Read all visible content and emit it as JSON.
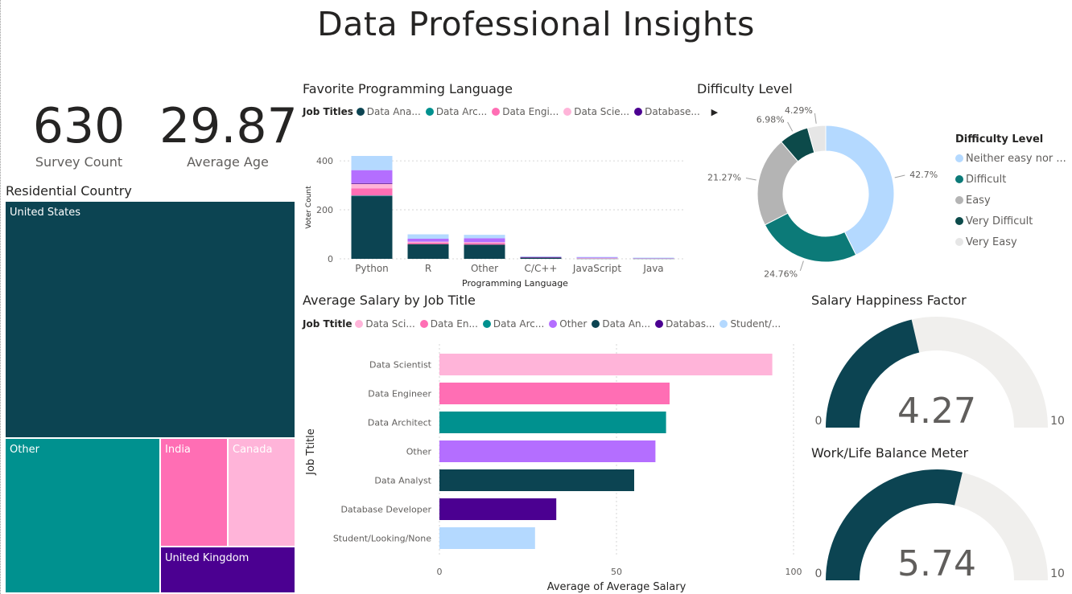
{
  "title": "Data Professional Insights",
  "kpis": {
    "survey_count": {
      "value": "630",
      "label": "Survey Count"
    },
    "average_age": {
      "value": "29.87",
      "label": "Average Age"
    }
  },
  "colors": {
    "dark_teal": "#0c4452",
    "teal": "#00918f",
    "pink": "#ff6eb4",
    "light_pink": "#ffb4d9",
    "purple": "#b46eff",
    "indigo": "#4b0091",
    "light_blue": "#b4d9ff",
    "grey": "#b4b4b4",
    "light_grey": "#e6e6e6",
    "gauge_bg": "#f0efed"
  },
  "treemap": {
    "title": "Residential Country",
    "items": [
      {
        "label": "United States",
        "color": "#0c4452"
      },
      {
        "label": "Other",
        "color": "#00918f"
      },
      {
        "label": "India",
        "color": "#ff6eb4"
      },
      {
        "label": "Canada",
        "color": "#ffb4d9"
      },
      {
        "label": "United Kingdom",
        "color": "#4b0091"
      }
    ]
  },
  "lang_chart": {
    "title": "Favorite Programming Language",
    "legend_title": "Job Titles",
    "legend_items": [
      "Data Ana...",
      "Data Arc...",
      "Data Engi...",
      "Data Scie...",
      "Database..."
    ],
    "legend_colors": [
      "#0c4452",
      "#00918f",
      "#ff6eb4",
      "#ffb4d9",
      "#4b0091"
    ],
    "legend_arrow": "▶"
  },
  "salary_chart": {
    "title": "Average Salary by Job Title",
    "legend_title": "Job Ttitle",
    "legend_items": [
      "Data Sci...",
      "Data En...",
      "Data Arc...",
      "Other",
      "Data An...",
      "Databas...",
      "Student/..."
    ],
    "legend_colors": [
      "#ffb4d9",
      "#ff6eb4",
      "#00918f",
      "#b46eff",
      "#0c4452",
      "#4b0091",
      "#b4d9ff"
    ]
  },
  "difficulty": {
    "title": "Difficulty Level",
    "legend_title": "Difficulty Level",
    "legend_items": [
      "Neither easy nor ...",
      "Difficult",
      "Easy",
      "Very Difficult",
      "Very Easy"
    ]
  },
  "gauges": {
    "salary": {
      "title": "Salary Happiness Factor",
      "value_label": "4.27",
      "min_label": "0",
      "max_label": "10"
    },
    "worklife": {
      "title": "Work/Life Balance Meter",
      "value_label": "5.74",
      "min_label": "0",
      "max_label": "10"
    }
  },
  "chart_data": [
    {
      "type": "bar",
      "stacked": true,
      "title": "Favorite Programming Language",
      "xlabel": "Programming Language",
      "ylabel": "Voter Count",
      "categories": [
        "Python",
        "R",
        "Other",
        "C/C++",
        "JavaScript",
        "Java"
      ],
      "ylim": [
        0,
        420
      ],
      "yticks": [
        0,
        200,
        400
      ],
      "series": [
        {
          "name": "Data Ana...",
          "color": "#0c4452",
          "values": [
            256,
            60,
            58,
            6,
            2,
            2
          ]
        },
        {
          "name": "Data Arc...",
          "color": "#00918f",
          "values": [
            2,
            0,
            0,
            0,
            0,
            0
          ]
        },
        {
          "name": "Data Engi...",
          "color": "#ff6eb4",
          "values": [
            30,
            6,
            6,
            1,
            0,
            0
          ]
        },
        {
          "name": "Data Scie...",
          "color": "#ffb4d9",
          "values": [
            18,
            4,
            4,
            0,
            1,
            1
          ]
        },
        {
          "name": "Database...",
          "color": "#4b0091",
          "values": [
            3,
            0,
            0,
            1,
            0,
            0
          ]
        },
        {
          "name": "",
          "color": "#b46eff",
          "values": [
            53,
            12,
            16,
            1,
            3,
            1
          ]
        },
        {
          "name": "",
          "color": "#b4d9ff",
          "values": [
            58,
            18,
            14,
            1,
            2,
            1
          ]
        }
      ]
    },
    {
      "type": "pie",
      "donut": true,
      "title": "Difficulty Level",
      "labels": [
        "Neither easy nor ...",
        "Difficult",
        "Easy",
        "Very Difficult",
        "Very Easy"
      ],
      "values": [
        42.7,
        24.76,
        21.27,
        6.98,
        4.29
      ],
      "value_labels": [
        "42.7%",
        "24.76%",
        "21.27%",
        "6.98%",
        "4.29%"
      ],
      "colors": [
        "#b4d9ff",
        "#0c7a78",
        "#b4b4b4",
        "#0c4a4a",
        "#e6e6e6"
      ],
      "legend": "right"
    },
    {
      "type": "bar",
      "orientation": "horizontal",
      "title": "Average Salary by Job Title",
      "xlabel": "Average of Average Salary",
      "ylabel": "Job Ttitle",
      "categories": [
        "Data Scientist",
        "Data Engineer",
        "Data Architect",
        "Other",
        "Data Analyst",
        "Database Developer",
        "Student/Looking/None"
      ],
      "values": [
        94,
        65,
        64,
        61,
        55,
        33,
        27
      ],
      "colors": [
        "#ffb4d9",
        "#ff6eb4",
        "#00918f",
        "#b46eff",
        "#0c4452",
        "#4b0091",
        "#b4d9ff"
      ],
      "xlim": [
        0,
        100
      ],
      "xticks": [
        0,
        50,
        100
      ]
    },
    {
      "type": "gauge",
      "title": "Salary Happiness Factor",
      "value": 4.27,
      "min": 0,
      "max": 10
    },
    {
      "type": "gauge",
      "title": "Work/Life Balance Meter",
      "value": 5.74,
      "min": 0,
      "max": 10
    }
  ]
}
